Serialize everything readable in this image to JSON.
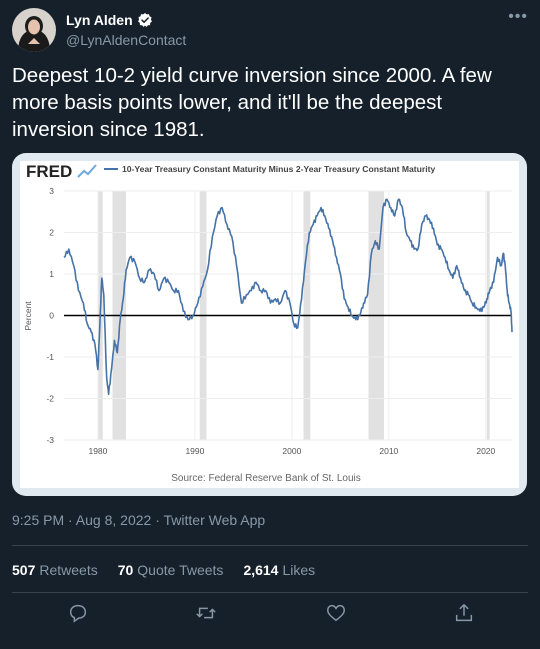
{
  "author": {
    "name": "Lyn Alden",
    "handle": "@LynAldenContact",
    "verified": true,
    "avatar_icon": "avatar-photo"
  },
  "tweet": {
    "text": "Deepest 10-2 yield curve inversion since 2000. A few more basis points lower, and it'll be the deepest inversion since 1981."
  },
  "meta": {
    "time": "9:25 PM",
    "date": "Aug 8, 2022",
    "source": "Twitter Web App",
    "full": "9:25 PM · Aug 8, 2022 · Twitter Web App"
  },
  "stats": {
    "retweets_count": "507",
    "retweets_label": "Retweets",
    "quotes_count": "70",
    "quotes_label": "Quote Tweets",
    "likes_count": "2,614",
    "likes_label": "Likes"
  },
  "actions": [
    "reply-icon",
    "retweet-icon",
    "like-icon",
    "share-icon"
  ],
  "colors": {
    "background": "#15202b",
    "secondary_text": "#8899a6",
    "divider": "#38444d",
    "verified": "#1d9bf0",
    "series": "#4572a7",
    "recession": "#e1e1e1"
  },
  "chart_data": {
    "type": "line",
    "brand": "FRED",
    "title": "10-Year Treasury Constant Maturity Minus 2-Year Treasury Constant Maturity",
    "ylabel": "Percent",
    "source": "Source: Federal Reserve Bank of St. Louis",
    "xlim": [
      1976.5,
      2022.7
    ],
    "ylim": [
      -3,
      3
    ],
    "yticks": [
      "3",
      "2",
      "1",
      "0",
      "-1",
      "-2",
      "-3"
    ],
    "xticks": [
      "1980",
      "1990",
      "2000",
      "2010",
      "2020"
    ],
    "recessions": [
      [
        1980.0,
        1980.5
      ],
      [
        1981.5,
        1982.9
      ],
      [
        1990.5,
        1991.2
      ],
      [
        2001.2,
        2001.9
      ],
      [
        2007.9,
        2009.5
      ],
      [
        2020.1,
        2020.4
      ]
    ],
    "series": [
      {
        "x": [
          1976.5,
          1977,
          1977.5,
          1978,
          1978.5,
          1978.9,
          1979.3,
          1979.7,
          1980.0,
          1980.2,
          1980.4,
          1980.6,
          1980.9,
          1981.1,
          1981.4,
          1981.7,
          1982.0,
          1982.3,
          1982.6,
          1982.9,
          1983.3,
          1983.8,
          1984.3,
          1984.8,
          1985.3,
          1985.8,
          1986.3,
          1986.8,
          1987.3,
          1987.8,
          1988.3,
          1988.8,
          1989.3,
          1989.8,
          1990.3,
          1990.8,
          1991.3,
          1991.8,
          1992.3,
          1992.8,
          1993.3,
          1993.8,
          1994.3,
          1994.8,
          1995.3,
          1995.8,
          1996.3,
          1996.8,
          1997.3,
          1997.8,
          1998.3,
          1998.8,
          1999.3,
          1999.8,
          2000.2,
          2000.6,
          2001.0,
          2001.4,
          2001.8,
          2002.2,
          2002.6,
          2003.0,
          2003.4,
          2003.8,
          2004.2,
          2004.6,
          2005.0,
          2005.4,
          2005.8,
          2006.2,
          2006.6,
          2007.0,
          2007.4,
          2007.8,
          2008.2,
          2008.6,
          2009.0,
          2009.4,
          2009.8,
          2010.2,
          2010.6,
          2011.0,
          2011.4,
          2011.8,
          2012.2,
          2012.6,
          2013.0,
          2013.4,
          2013.8,
          2014.2,
          2014.6,
          2015.0,
          2015.4,
          2015.8,
          2016.2,
          2016.6,
          2017.0,
          2017.4,
          2017.8,
          2018.2,
          2018.6,
          2019.0,
          2019.4,
          2019.8,
          2020.1,
          2020.4,
          2020.8,
          2021.2,
          2021.6,
          2021.8,
          2022.0,
          2022.2,
          2022.4,
          2022.6,
          2022.7
        ],
        "values": [
          1.4,
          1.6,
          1.2,
          0.6,
          0.3,
          -0.2,
          -0.4,
          -0.7,
          -1.3,
          -0.2,
          0.9,
          0.5,
          -1.5,
          -1.9,
          -1.3,
          -0.6,
          -0.9,
          -0.1,
          0.4,
          1.1,
          1.4,
          1.3,
          0.9,
          0.8,
          1.1,
          1.0,
          0.6,
          0.9,
          0.8,
          0.6,
          0.6,
          0.1,
          -0.1,
          0.0,
          0.3,
          0.7,
          1.1,
          1.9,
          2.4,
          2.6,
          2.2,
          1.9,
          1.2,
          0.3,
          0.5,
          0.6,
          0.8,
          0.6,
          0.6,
          0.3,
          0.4,
          0.3,
          0.6,
          0.3,
          -0.2,
          -0.3,
          0.4,
          1.3,
          2.0,
          2.2,
          2.4,
          2.6,
          2.4,
          2.1,
          1.8,
          1.4,
          1.0,
          0.4,
          0.2,
          0.0,
          -0.1,
          0.0,
          0.3,
          0.5,
          1.5,
          1.8,
          1.6,
          2.6,
          2.8,
          2.6,
          2.4,
          2.8,
          2.6,
          2.0,
          1.8,
          1.6,
          1.6,
          2.2,
          2.4,
          2.3,
          2.1,
          1.7,
          1.6,
          1.4,
          1.1,
          0.9,
          1.2,
          0.9,
          0.6,
          0.5,
          0.3,
          0.2,
          0.1,
          0.2,
          0.4,
          0.6,
          0.8,
          1.4,
          1.2,
          1.5,
          1.2,
          0.6,
          0.3,
          0.1,
          -0.4
        ]
      }
    ]
  }
}
